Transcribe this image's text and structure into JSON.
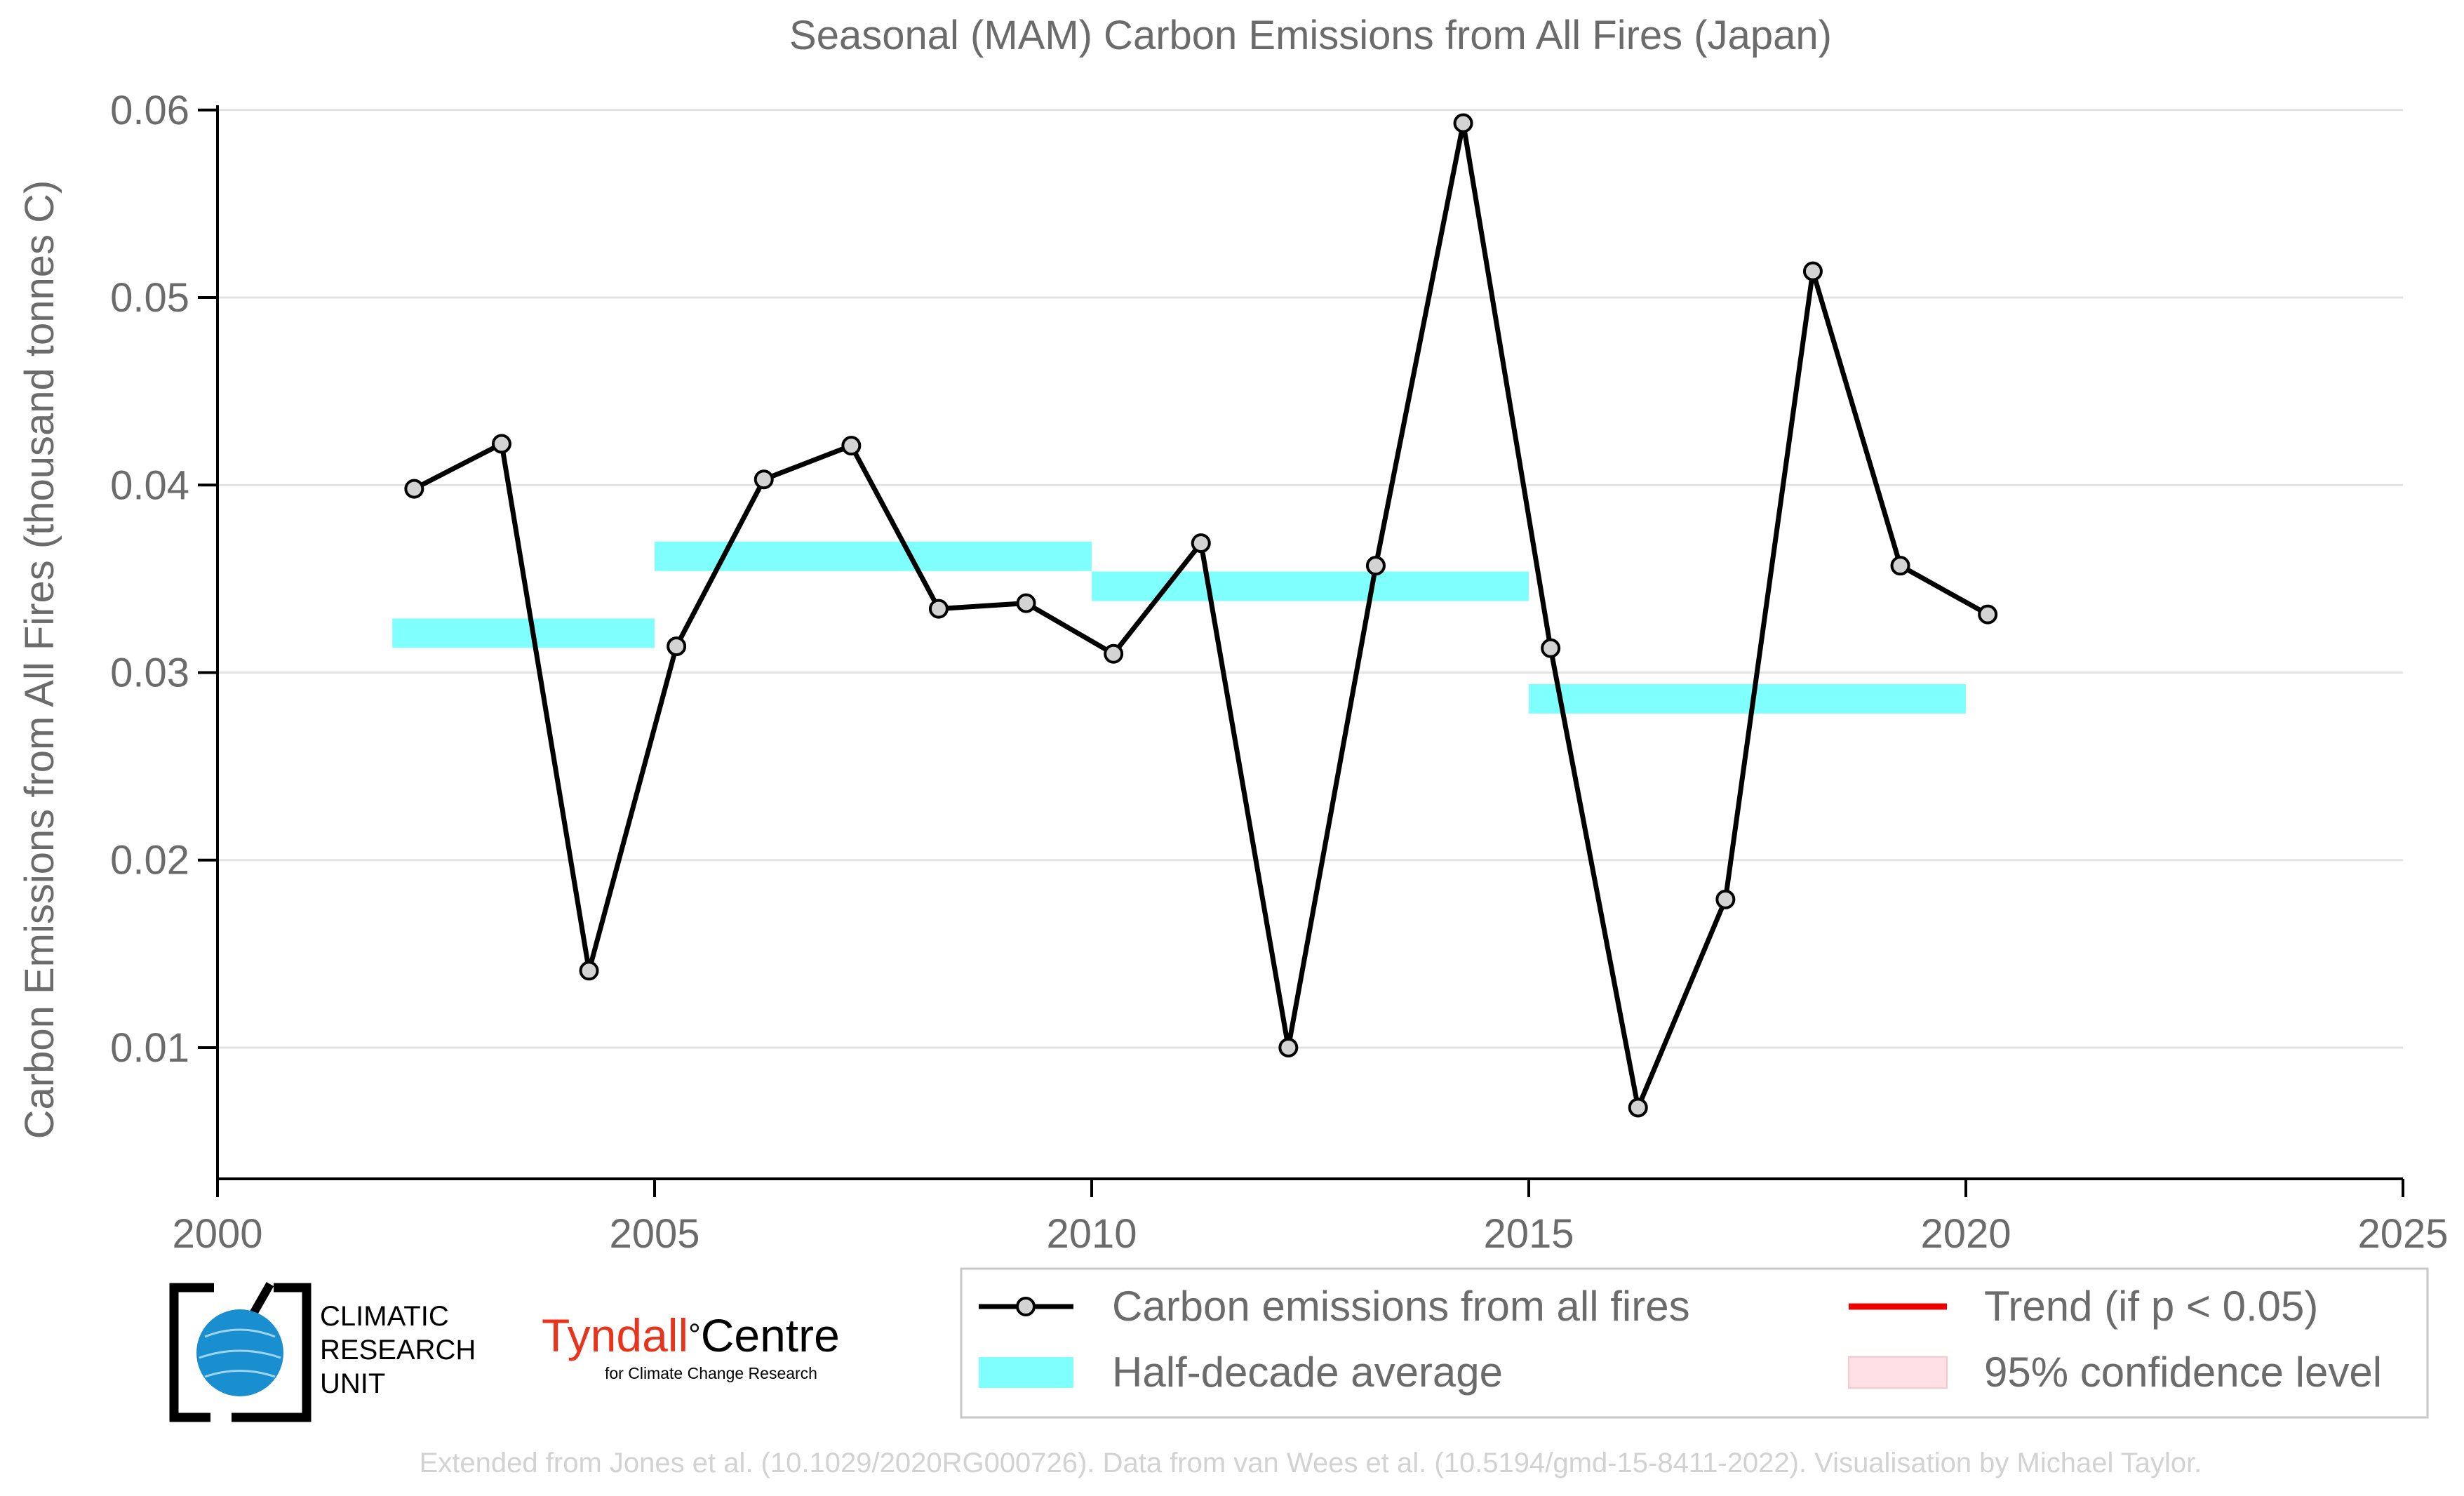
{
  "chart_data": {
    "type": "line",
    "title": "Seasonal (MAM) Carbon Emissions from All Fires (Japan)",
    "ylabel": "Carbon Emissions from All Fires (thousand tonnes C)",
    "xlabel": "",
    "xlim": [
      2000,
      2025
    ],
    "ylim": [
      0.003,
      0.0625
    ],
    "x_ticks": [
      2000,
      2005,
      2010,
      2015,
      2020,
      2025
    ],
    "x_tick_labels": [
      "2000",
      "2005",
      "2010",
      "2015",
      "2020",
      "2025"
    ],
    "y_ticks": [
      0.01,
      0.02,
      0.03,
      0.04,
      0.05,
      0.06
    ],
    "y_tick_labels": [
      "0.01",
      "0.02",
      "0.03",
      "0.04",
      "0.05",
      "0.06"
    ],
    "grid": "horizontal",
    "legend_placement": "bottom-right",
    "series": [
      {
        "name": "Carbon emissions from all fires",
        "color": "#000000",
        "x": [
          2002.25,
          2003.25,
          2004.25,
          2005.25,
          2006.25,
          2007.25,
          2008.25,
          2009.25,
          2010.25,
          2011.25,
          2012.25,
          2013.25,
          2014.25,
          2015.25,
          2016.25,
          2017.25,
          2018.25,
          2019.25,
          2020.25
        ],
        "y": [
          0.0398,
          0.0422,
          0.0141,
          0.0314,
          0.0403,
          0.0421,
          0.0334,
          0.0337,
          0.031,
          0.0369,
          0.01,
          0.0357,
          0.0593,
          0.0313,
          0.0068,
          0.0179,
          0.0514,
          0.0357,
          0.0331
        ]
      }
    ],
    "half_decade_average": {
      "name": "Half-decade average",
      "color": "#80ffff",
      "segments": [
        {
          "x_start": 2002,
          "x_end": 2005,
          "value": 0.0321
        },
        {
          "x_start": 2005,
          "x_end": 2010,
          "value": 0.0362
        },
        {
          "x_start": 2010,
          "x_end": 2015,
          "value": 0.0346
        },
        {
          "x_start": 2015,
          "x_end": 2020,
          "value": 0.0286
        }
      ]
    },
    "legend": [
      {
        "label": "Carbon emissions from all fires",
        "kind": "line-marker",
        "color": "#000000"
      },
      {
        "label": "Half-decade average",
        "kind": "band",
        "color": "#80ffff"
      },
      {
        "label": "Trend (if p < 0.05)",
        "kind": "line",
        "color": "#ee0000"
      },
      {
        "label": "95% confidence level",
        "kind": "band",
        "color": "#ffe0e4"
      }
    ],
    "footer": "Extended from Jones et al. (10.1029/2020RG000726). Data from van Wees et al. (10.5194/gmd-15-8411-2022). Visualisation by Michael Taylor."
  },
  "logos": {
    "cru": {
      "lines": [
        "CLIMATIC",
        "RESEARCH",
        "UNIT"
      ]
    },
    "tyndall": {
      "name": "Tyndall",
      "degree": "°",
      "centre": "Centre",
      "tagline": "for Climate Change Research",
      "color": "#e8341c"
    }
  }
}
